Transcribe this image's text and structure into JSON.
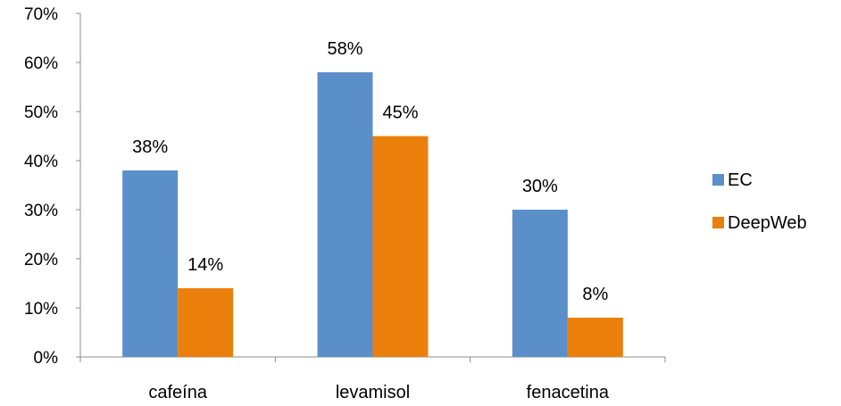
{
  "chart_data": {
    "type": "bar",
    "categories": [
      "cafeína",
      "levamisol",
      "fenacetina"
    ],
    "series": [
      {
        "name": "EC",
        "values": [
          0.38,
          0.58,
          0.3
        ],
        "labels": [
          "38%",
          "58%",
          "30%"
        ],
        "color": "#5B8FC9"
      },
      {
        "name": "DeepWeb",
        "values": [
          0.14,
          0.45,
          0.08
        ],
        "labels": [
          "14%",
          "45%",
          "8%"
        ],
        "color": "#EB7F0C"
      }
    ],
    "ylim": [
      0,
      0.7
    ],
    "yticks": [
      0,
      0.1,
      0.2,
      0.3,
      0.4,
      0.5,
      0.6,
      0.7
    ],
    "ytick_labels": [
      "0%",
      "10%",
      "20%",
      "30%",
      "40%",
      "50%",
      "60%",
      "70%"
    ],
    "grid": false,
    "legend_position": "right"
  }
}
